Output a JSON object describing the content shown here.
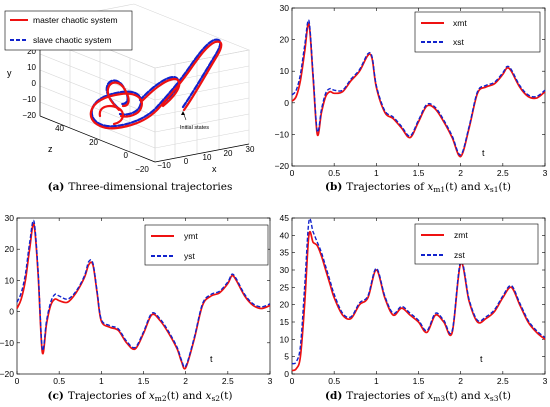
{
  "colors": {
    "master": "#ee1111",
    "slave": "#1122cc"
  },
  "panels": [
    {
      "id": "a",
      "caption": {
        "tag": "(a)",
        "text": "Three-dimensional trajectories"
      },
      "axis_labels": {
        "x": "x",
        "y": "y",
        "z": "z"
      },
      "ticks": {
        "y": [
          "30",
          "20",
          "10",
          "0",
          "−10",
          "−20"
        ],
        "z": [
          "40",
          "20",
          "0"
        ],
        "x": [
          "−20",
          "−10",
          "0",
          "10",
          "20",
          "30"
        ]
      },
      "legend": [
        "master chaotic system",
        "slave chaotic system"
      ],
      "annotation": "Initial states"
    },
    {
      "id": "b",
      "caption": {
        "tag": "(b)",
        "pre": "Trajectories of ",
        "v1": "x",
        "s1": "m1",
        "mid": " and ",
        "v2": "x",
        "s2": "s1",
        "arg": "(t)"
      },
      "legend": [
        "xmt",
        "xst"
      ],
      "xlabel": "t",
      "chart": {
        "xlim": [
          0,
          3
        ],
        "ylim": [
          -20,
          30
        ],
        "xticks": [
          "0",
          "0.5",
          "1",
          "1.5",
          "2",
          "2.5",
          "3"
        ],
        "yticks": [
          "−20",
          "−10",
          "0",
          "10",
          "20",
          "30"
        ]
      }
    },
    {
      "id": "c",
      "caption": {
        "tag": "(c)",
        "pre": "Trajectories of ",
        "v1": "x",
        "s1": "m2",
        "mid": " and ",
        "v2": "x",
        "s2": "s2",
        "arg": "(t)"
      },
      "legend": [
        "ymt",
        "yst"
      ],
      "xlabel": "t",
      "chart": {
        "xlim": [
          0,
          3
        ],
        "ylim": [
          -20,
          30
        ],
        "xticks": [
          "0",
          "0.5",
          "1",
          "1.5",
          "2",
          "2.5",
          "3"
        ],
        "yticks": [
          "−20",
          "−10",
          "0",
          "10",
          "20",
          "30"
        ]
      }
    },
    {
      "id": "d",
      "caption": {
        "tag": "(d)",
        "pre": "Trajectories of ",
        "v1": "x",
        "s1": "m3",
        "mid": " and ",
        "v2": "x",
        "s2": "s3",
        "arg": "(t)"
      },
      "legend": [
        "zmt",
        "zst"
      ],
      "xlabel": "t",
      "chart": {
        "xlim": [
          0,
          3
        ],
        "ylim": [
          0,
          45
        ],
        "xticks": [
          "0",
          "0.5",
          "1",
          "1.5",
          "2",
          "2.5",
          "3"
        ],
        "yticks": [
          "0",
          "5",
          "10",
          "15",
          "20",
          "25",
          "30",
          "35",
          "40",
          "45"
        ]
      }
    }
  ],
  "chart_data": [
    {
      "type": "line",
      "panel": "b",
      "xlim": [
        0,
        3
      ],
      "ylim": [
        -20,
        30
      ],
      "series": [
        {
          "name": "xmt",
          "x": [
            0,
            0.05,
            0.1,
            0.15,
            0.2,
            0.25,
            0.3,
            0.35,
            0.4,
            0.45,
            0.5,
            0.6,
            0.7,
            0.8,
            0.9,
            0.95,
            1,
            1.1,
            1.2,
            1.3,
            1.4,
            1.5,
            1.6,
            1.7,
            1.8,
            1.9,
            2,
            2.1,
            2.2,
            2.3,
            2.4,
            2.5,
            2.55,
            2.6,
            2.7,
            2.8,
            2.9,
            3
          ],
          "y": [
            0.5,
            2,
            7,
            16,
            25,
            8,
            -10,
            -3,
            2,
            3.5,
            3,
            3.5,
            7,
            10,
            15,
            14,
            5,
            -3,
            -5,
            -8,
            -11,
            -6,
            -1,
            -2,
            -6,
            -11,
            -17,
            -8,
            3,
            5,
            6,
            9,
            11,
            10,
            5,
            2,
            1.5,
            3.5
          ]
        },
        {
          "name": "xst",
          "x": [
            0,
            0.05,
            0.1,
            0.15,
            0.2,
            0.25,
            0.3,
            0.35,
            0.4,
            0.45,
            0.5,
            0.6,
            0.7,
            0.8,
            0.9,
            0.95,
            1,
            1.1,
            1.2,
            1.3,
            1.4,
            1.5,
            1.6,
            1.7,
            1.8,
            1.9,
            2,
            2.1,
            2.2,
            2.3,
            2.4,
            2.5,
            2.55,
            2.6,
            2.7,
            2.8,
            2.9,
            3
          ],
          "y": [
            2.5,
            4,
            9,
            18,
            26,
            9,
            -9,
            -2,
            3,
            4.5,
            4,
            4,
            7.5,
            10.5,
            15.5,
            14.5,
            5.5,
            -2.5,
            -4.5,
            -7.5,
            -10.5,
            -5.5,
            -0.5,
            -1.5,
            -5.5,
            -10.5,
            -16.5,
            -7.5,
            3.5,
            5.5,
            6.5,
            9.5,
            11.5,
            10.5,
            5.5,
            2.5,
            2,
            4
          ]
        }
      ]
    },
    {
      "type": "line",
      "panel": "c",
      "xlim": [
        0,
        3
      ],
      "ylim": [
        -20,
        30
      ],
      "series": [
        {
          "name": "ymt",
          "x": [
            0,
            0.05,
            0.1,
            0.15,
            0.2,
            0.25,
            0.3,
            0.35,
            0.4,
            0.45,
            0.5,
            0.6,
            0.7,
            0.8,
            0.85,
            0.9,
            0.95,
            1,
            1.1,
            1.2,
            1.3,
            1.4,
            1.5,
            1.6,
            1.7,
            1.8,
            1.9,
            1.95,
            2,
            2.1,
            2.2,
            2.3,
            2.4,
            2.5,
            2.55,
            2.6,
            2.7,
            2.8,
            2.9,
            3
          ],
          "y": [
            1,
            4,
            10,
            20,
            28,
            12,
            -13,
            -4,
            2,
            4,
            3.5,
            3,
            6,
            11,
            15,
            15,
            6,
            -3,
            -5,
            -6,
            -10,
            -12,
            -7,
            -1,
            -3,
            -7,
            -12,
            -16,
            -18,
            -9,
            2,
            5,
            6,
            9,
            11.5,
            10,
            5,
            2,
            1,
            2
          ]
        },
        {
          "name": "yst",
          "x": [
            0,
            0.05,
            0.1,
            0.15,
            0.2,
            0.25,
            0.3,
            0.35,
            0.4,
            0.45,
            0.5,
            0.6,
            0.7,
            0.8,
            0.85,
            0.9,
            0.95,
            1,
            1.1,
            1.2,
            1.3,
            1.4,
            1.5,
            1.6,
            1.7,
            1.8,
            1.9,
            1.95,
            2,
            2.1,
            2.2,
            2.3,
            2.4,
            2.5,
            2.55,
            2.6,
            2.7,
            2.8,
            2.9,
            3
          ],
          "y": [
            3,
            6,
            12,
            22,
            29,
            13,
            -12,
            -3,
            3,
            5.5,
            5,
            4,
            6.5,
            11.5,
            16,
            15.5,
            6.5,
            -2.5,
            -4.5,
            -5.5,
            -9.5,
            -11.5,
            -6.5,
            -0.5,
            -2.5,
            -6.5,
            -11.5,
            -15.5,
            -17.5,
            -8.5,
            2.5,
            5.5,
            6.5,
            9.5,
            12,
            10.5,
            5.5,
            2.5,
            1.5,
            2.5
          ]
        }
      ]
    },
    {
      "type": "line",
      "panel": "d",
      "xlim": [
        0,
        3
      ],
      "ylim": [
        0,
        45
      ],
      "series": [
        {
          "name": "zmt",
          "x": [
            0,
            0.05,
            0.1,
            0.15,
            0.2,
            0.25,
            0.3,
            0.35,
            0.4,
            0.45,
            0.5,
            0.6,
            0.7,
            0.8,
            0.9,
            1,
            1.1,
            1.2,
            1.3,
            1.4,
            1.5,
            1.6,
            1.7,
            1.8,
            1.9,
            2,
            2.1,
            2.2,
            2.3,
            2.4,
            2.5,
            2.6,
            2.7,
            2.8,
            2.9,
            3
          ],
          "y": [
            1,
            1.5,
            5,
            20,
            40,
            38,
            37,
            34,
            30,
            26,
            22,
            17,
            16,
            20,
            22,
            30,
            22,
            17,
            19,
            17,
            15,
            12,
            17,
            15,
            12,
            32,
            21,
            15,
            16,
            18,
            22,
            25,
            20,
            15,
            12,
            10
          ]
        },
        {
          "name": "zst",
          "x": [
            0,
            0.05,
            0.1,
            0.15,
            0.2,
            0.25,
            0.3,
            0.35,
            0.4,
            0.45,
            0.5,
            0.6,
            0.7,
            0.8,
            0.9,
            1,
            1.1,
            1.2,
            1.3,
            1.4,
            1.5,
            1.6,
            1.7,
            1.8,
            1.9,
            2,
            2.1,
            2.2,
            2.3,
            2.4,
            2.5,
            2.6,
            2.7,
            2.8,
            2.9,
            3
          ],
          "y": [
            3,
            3.5,
            8,
            25,
            44,
            41,
            38,
            35,
            31,
            27,
            23,
            17.5,
            16.5,
            20.5,
            22.5,
            30.5,
            22.5,
            17.5,
            19.5,
            17.5,
            15.5,
            12.5,
            17.5,
            15.5,
            12.5,
            32.5,
            21.5,
            15.5,
            16.5,
            18.5,
            22.5,
            25.5,
            20.5,
            15.5,
            12.5,
            10.5
          ]
        }
      ]
    }
  ]
}
